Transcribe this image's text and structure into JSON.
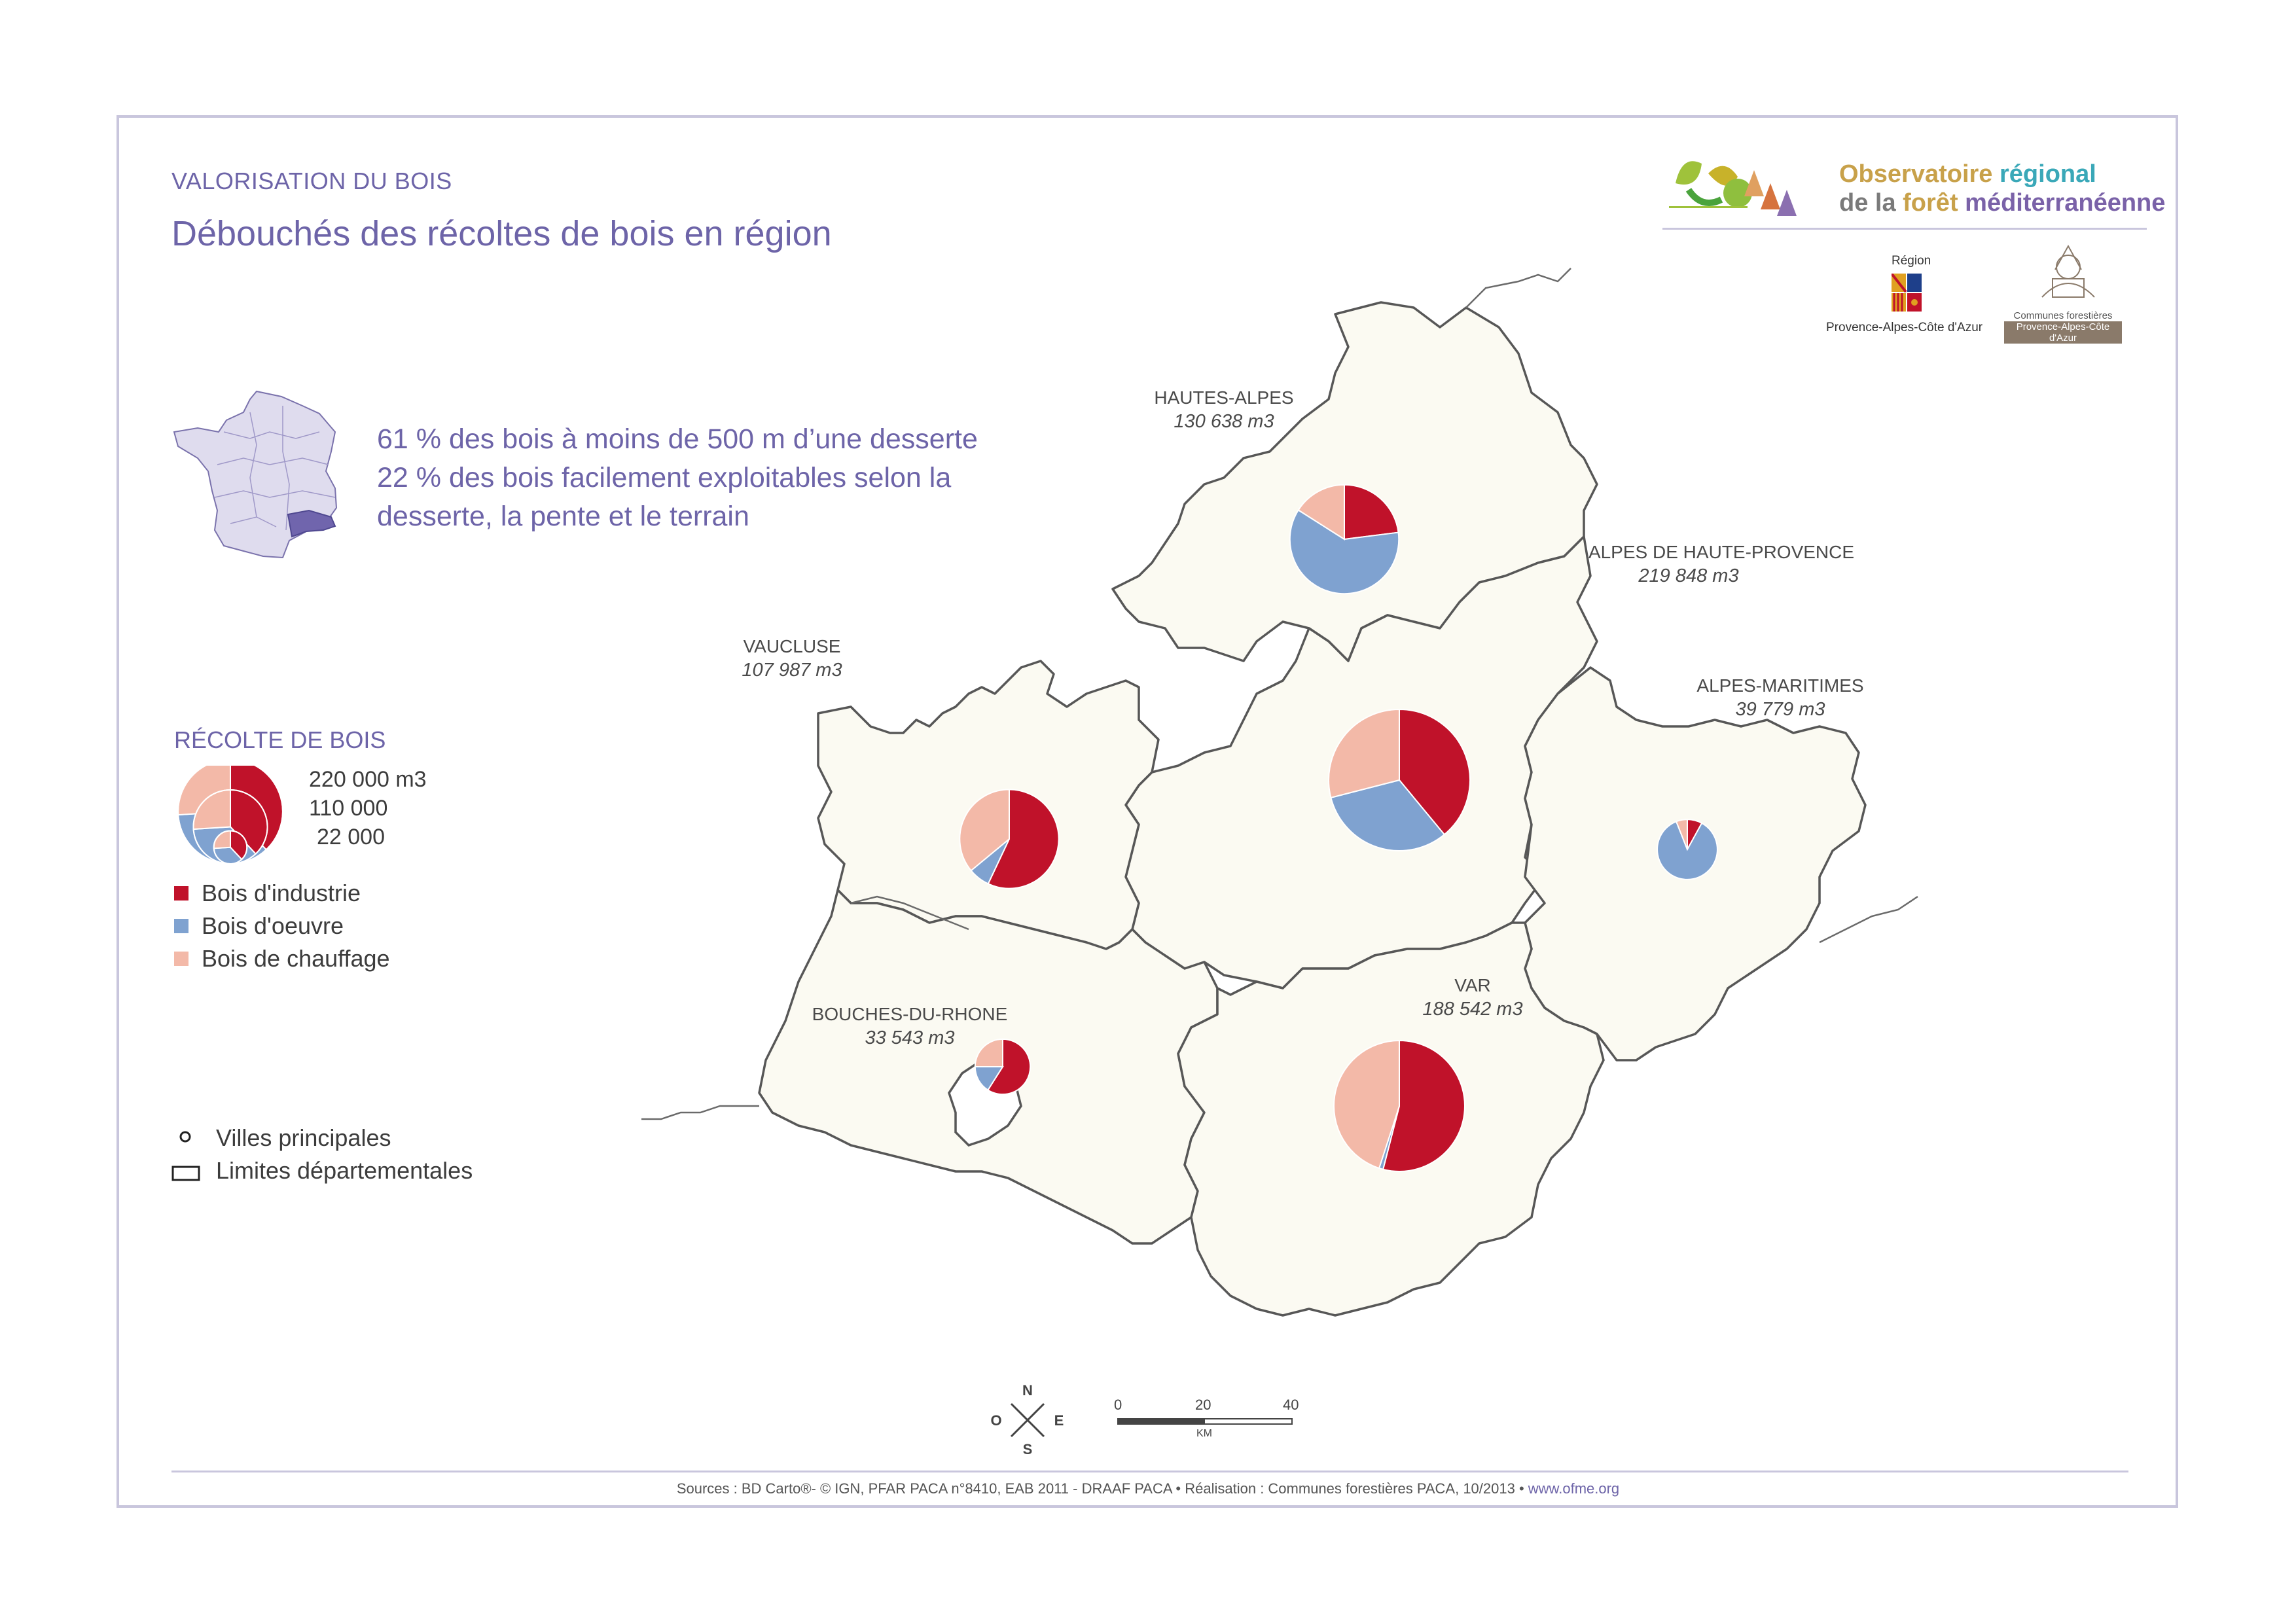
{
  "header": {
    "kicker": "VALORISATION DU BOIS",
    "title": "Débouchés des récoltes de bois en région"
  },
  "facts": {
    "line1": "61 % des bois à moins de 500 m d’une desserte",
    "line2": "22 % des bois facilement exploitables selon la",
    "line3": "desserte, la pente et le terrain"
  },
  "logo": {
    "line1a": "Observatoire ",
    "line1b": "régional",
    "line2a": "de la ",
    "line2b": "forêt",
    "line2c": " méditerranéenne",
    "region_label": "Région",
    "region_name": "Provence-Alpes-Côte d'Azur",
    "communes_line1": "Communes forestières",
    "communes_line2": "Provence-Alpes-Côte d'Azur"
  },
  "legend": {
    "title": "RÉCOLTE DE BOIS",
    "sizes": [
      "220 000 m3",
      "110 000",
      "22 000"
    ],
    "categories": [
      {
        "label": "Bois d'industrie",
        "color": "#c0122a"
      },
      {
        "label": "Bois d'oeuvre",
        "color": "#7fa2d0"
      },
      {
        "label": "Bois de chauffage",
        "color": "#f3b9a8"
      }
    ],
    "symbols": [
      {
        "label": "Villes principales",
        "icon": "city-dot-icon"
      },
      {
        "label": "Limites départementales",
        "icon": "boundary-rect-icon"
      }
    ]
  },
  "departments": [
    {
      "name": "HAUTES-ALPES",
      "volume": "130 638 m3"
    },
    {
      "name": "ALPES DE HAUTE-PROVENCE",
      "volume": "219 848 m3"
    },
    {
      "name": "VAUCLUSE",
      "volume": "107 987 m3"
    },
    {
      "name": "ALPES-MARITIMES",
      "volume": "39 779 m3"
    },
    {
      "name": "VAR",
      "volume": "188 542 m3"
    },
    {
      "name": "BOUCHES-DU-RHONE",
      "volume": "33 543 m3"
    }
  ],
  "chart_data": {
    "type": "pie",
    "unit": "m3",
    "categories": [
      "Bois d'industrie",
      "Bois d'oeuvre",
      "Bois de chauffage"
    ],
    "series": [
      {
        "department": "HAUTES-ALPES",
        "total": 130638,
        "shares": [
          0.23,
          0.61,
          0.16
        ]
      },
      {
        "department": "ALPES DE HAUTE-PROVENCE",
        "total": 219848,
        "shares": [
          0.39,
          0.32,
          0.29
        ]
      },
      {
        "department": "VAUCLUSE",
        "total": 107987,
        "shares": [
          0.57,
          0.07,
          0.36
        ]
      },
      {
        "department": "ALPES-MARITIMES",
        "total": 39779,
        "shares": [
          0.08,
          0.86,
          0.06
        ]
      },
      {
        "department": "VAR",
        "total": 188542,
        "shares": [
          0.54,
          0.01,
          0.45
        ]
      },
      {
        "department": "BOUCHES-DU-RHONE",
        "total": 33543,
        "shares": [
          0.59,
          0.16,
          0.25
        ]
      }
    ]
  },
  "scale": {
    "ticks": [
      "0",
      "20",
      "40"
    ],
    "unit": "KM"
  },
  "compass": {
    "n": "N",
    "s": "S",
    "e": "E",
    "o": "O"
  },
  "sources": {
    "text": "Sources : BD Carto®- © IGN, PFAR PACA n°8410,  EAB 2011 - DRAAF PACA • Réalisation : Communes forestières PACA, 10/2013 • ",
    "link": "www.ofme.org"
  }
}
